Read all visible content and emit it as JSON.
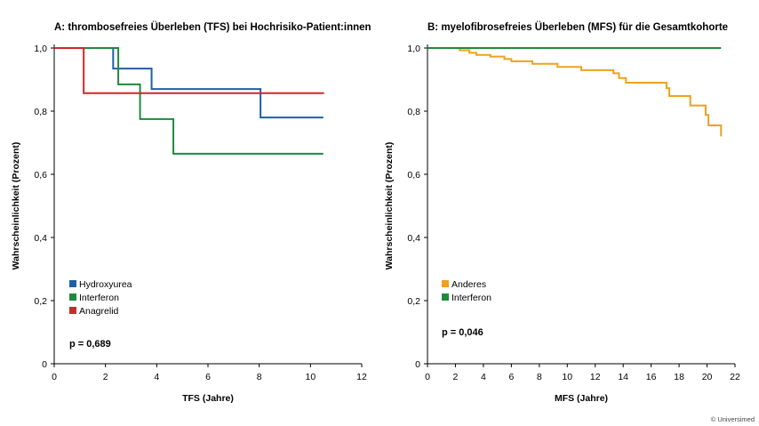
{
  "copyright": "© Universimed",
  "chart_data": [
    {
      "type": "line",
      "step": true,
      "title": "A: thrombosefreies Überleben (TFS) bei Hochrisiko-Patient:innen",
      "xlabel": "TFS (Jahre)",
      "ylabel": "Wahrscheinlichkeit (Prozent)",
      "xlim": [
        0,
        12
      ],
      "ylim": [
        0,
        1
      ],
      "xticks": [
        0,
        2,
        4,
        6,
        8,
        10,
        12
      ],
      "xtick_labels": [
        "0",
        "2",
        "4",
        "6",
        "8",
        "10",
        "12"
      ],
      "yticks": [
        0,
        0.2,
        0.4,
        0.6,
        0.8,
        1.0
      ],
      "ytick_labels": [
        "0",
        "0,2",
        "0,4",
        "0,6",
        "0,8",
        "1,0"
      ],
      "legend_position": "bottom-left",
      "annotation": "p = 0,689",
      "series": [
        {
          "name": "Hydroxyurea",
          "color": "#1f5fa8",
          "x": [
            0,
            2.3,
            3.8,
            8.05,
            10.5
          ],
          "y": [
            1.0,
            0.935,
            0.87,
            0.78,
            0.78
          ]
        },
        {
          "name": "Interferon",
          "color": "#1e8a3c",
          "x": [
            0,
            2.5,
            3.35,
            4.65,
            10.5
          ],
          "y": [
            1.0,
            0.885,
            0.775,
            0.665,
            0.665
          ]
        },
        {
          "name": "Anagrelid",
          "color": "#d0262a",
          "x": [
            0,
            1.15,
            10.5
          ],
          "y": [
            1.0,
            0.857,
            0.855
          ]
        }
      ]
    },
    {
      "type": "line",
      "step": true,
      "title": "B: myelofibrosefreies Überleben (MFS) für die Gesamtkohorte",
      "xlabel": "MFS (Jahre)",
      "ylabel": "Wahrscheinlichkeit (Prozent)",
      "xlim": [
        0,
        22
      ],
      "ylim": [
        0,
        1
      ],
      "xticks": [
        0,
        2,
        4,
        6,
        8,
        10,
        12,
        14,
        16,
        18,
        20,
        22
      ],
      "xtick_labels": [
        "0",
        "2",
        "4",
        "6",
        "8",
        "10",
        "12",
        "14",
        "16",
        "18",
        "20",
        "22"
      ],
      "yticks": [
        0,
        0.2,
        0.4,
        0.6,
        0.8,
        1.0
      ],
      "ytick_labels": [
        "0",
        "0,2",
        "0,4",
        "0,6",
        "0,8",
        "1,0"
      ],
      "legend_position": "bottom-left",
      "annotation": "p = 0,046",
      "series": [
        {
          "name": "Anderes",
          "color": "#f0a01e",
          "x": [
            0,
            2.3,
            3.0,
            3.5,
            4.5,
            5.5,
            6.0,
            7.5,
            9.3,
            11.0,
            13.3,
            13.7,
            14.2,
            17.1,
            17.3,
            18.8,
            19.9,
            20.1,
            21.0
          ],
          "y": [
            1.0,
            0.993,
            0.985,
            0.978,
            0.973,
            0.965,
            0.958,
            0.95,
            0.94,
            0.93,
            0.92,
            0.905,
            0.89,
            0.873,
            0.848,
            0.818,
            0.788,
            0.755,
            0.72
          ]
        },
        {
          "name": "Interferon",
          "color": "#1e8a3c",
          "x": [
            0,
            21.0
          ],
          "y": [
            1.0,
            1.0
          ]
        }
      ]
    }
  ]
}
